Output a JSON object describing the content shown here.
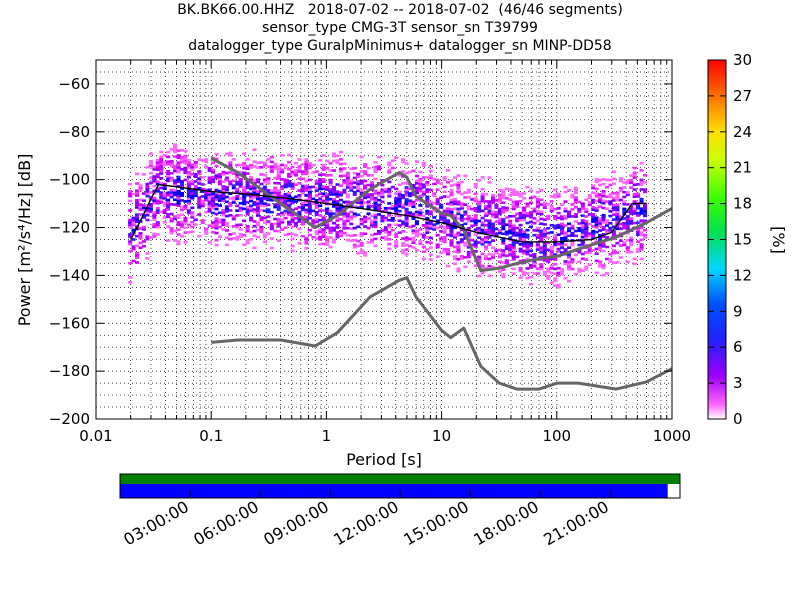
{
  "title": {
    "line1": "BK.BK66.00.HHZ   2018-07-02 -- 2018-07-02  (46/46 segments)",
    "line2": "sensor_type CMG-3T sensor_sn T39799",
    "line3": "datalogger_type GuralpMinimus+ datalogger_sn MINP-DD58"
  },
  "chart_data": {
    "type": "heatmap",
    "xlabel": "Period [s]",
    "ylabel": "Power [m²/s⁴/Hz] [dB]",
    "xscale": "log",
    "xlim": [
      0.01,
      1000
    ],
    "ylim": [
      -200,
      -50
    ],
    "x_ticks": [
      0.01,
      0.1,
      1,
      10,
      100,
      1000
    ],
    "x_tick_labels": [
      "0.01",
      "0.1",
      "1",
      "10",
      "100",
      "1000"
    ],
    "y_ticks": [
      -200,
      -180,
      -160,
      -140,
      -120,
      -100,
      -80,
      -60
    ],
    "colorbar": {
      "label": "[%]",
      "range": [
        0,
        30
      ],
      "ticks": [
        0,
        3,
        6,
        9,
        12,
        15,
        18,
        21,
        24,
        27,
        30
      ]
    },
    "grid": "dotted",
    "series": [
      {
        "role": "noise-model-high",
        "color": "#666666",
        "x": [
          0.1,
          0.17,
          0.4,
          0.8,
          1.24,
          2.4,
          4.3,
          5,
          6,
          10,
          12,
          15.6,
          21.9,
          31.6,
          45,
          70,
          101,
          154,
          328,
          600,
          1000
        ],
        "y": [
          -91,
          -97,
          -110,
          -120,
          -115,
          -104,
          -97,
          -99,
          -107,
          -114,
          -115,
          -121,
          -138,
          -137,
          -135,
          -133,
          -132,
          -129,
          -124,
          -118,
          -112
        ]
      },
      {
        "role": "noise-model-low",
        "color": "#666666",
        "x": [
          0.1,
          0.17,
          0.4,
          0.8,
          1.24,
          2.4,
          4.3,
          5,
          6,
          10,
          12,
          15.6,
          21.9,
          31.6,
          45,
          70,
          101,
          154,
          328,
          600,
          1000
        ],
        "y": [
          -168,
          -167,
          -167,
          -169.5,
          -164,
          -149,
          -142,
          -141,
          -149,
          -163,
          -166,
          -162,
          -178,
          -185,
          -187.5,
          -187.5,
          -185,
          -185,
          -187.5,
          -184.5,
          -179
        ]
      },
      {
        "role": "mode",
        "color": "#000000",
        "x": [
          0.02,
          0.025,
          0.03,
          0.035,
          0.05,
          0.1,
          0.2,
          0.5,
          1,
          2,
          5,
          10,
          20,
          50,
          100,
          200,
          300,
          450,
          600
        ],
        "y": [
          -125,
          -116,
          -108,
          -102,
          -103,
          -105,
          -106,
          -108,
          -110,
          -112,
          -115,
          -118,
          -122,
          -126,
          -126,
          -125,
          -122,
          -110,
          -110
        ]
      }
    ],
    "density": {
      "band_center": [
        [
          0.02,
          -122
        ],
        [
          0.035,
          -105
        ],
        [
          0.1,
          -108
        ],
        [
          1,
          -110
        ],
        [
          5,
          -112
        ],
        [
          20,
          -120
        ],
        [
          100,
          -125
        ],
        [
          600,
          -112
        ]
      ],
      "band_halfwidth_db": 20,
      "x_range": [
        0.019,
        600
      ],
      "peak_percent": 7
    }
  },
  "data_availability": {
    "time_labels": [
      "03:00:00",
      "06:00:00",
      "09:00:00",
      "12:00:00",
      "15:00:00",
      "18:00:00",
      "21:00:00"
    ],
    "coverage_color": "#008000",
    "segment_color": "#0000ff",
    "segment_fraction": 0.978
  }
}
